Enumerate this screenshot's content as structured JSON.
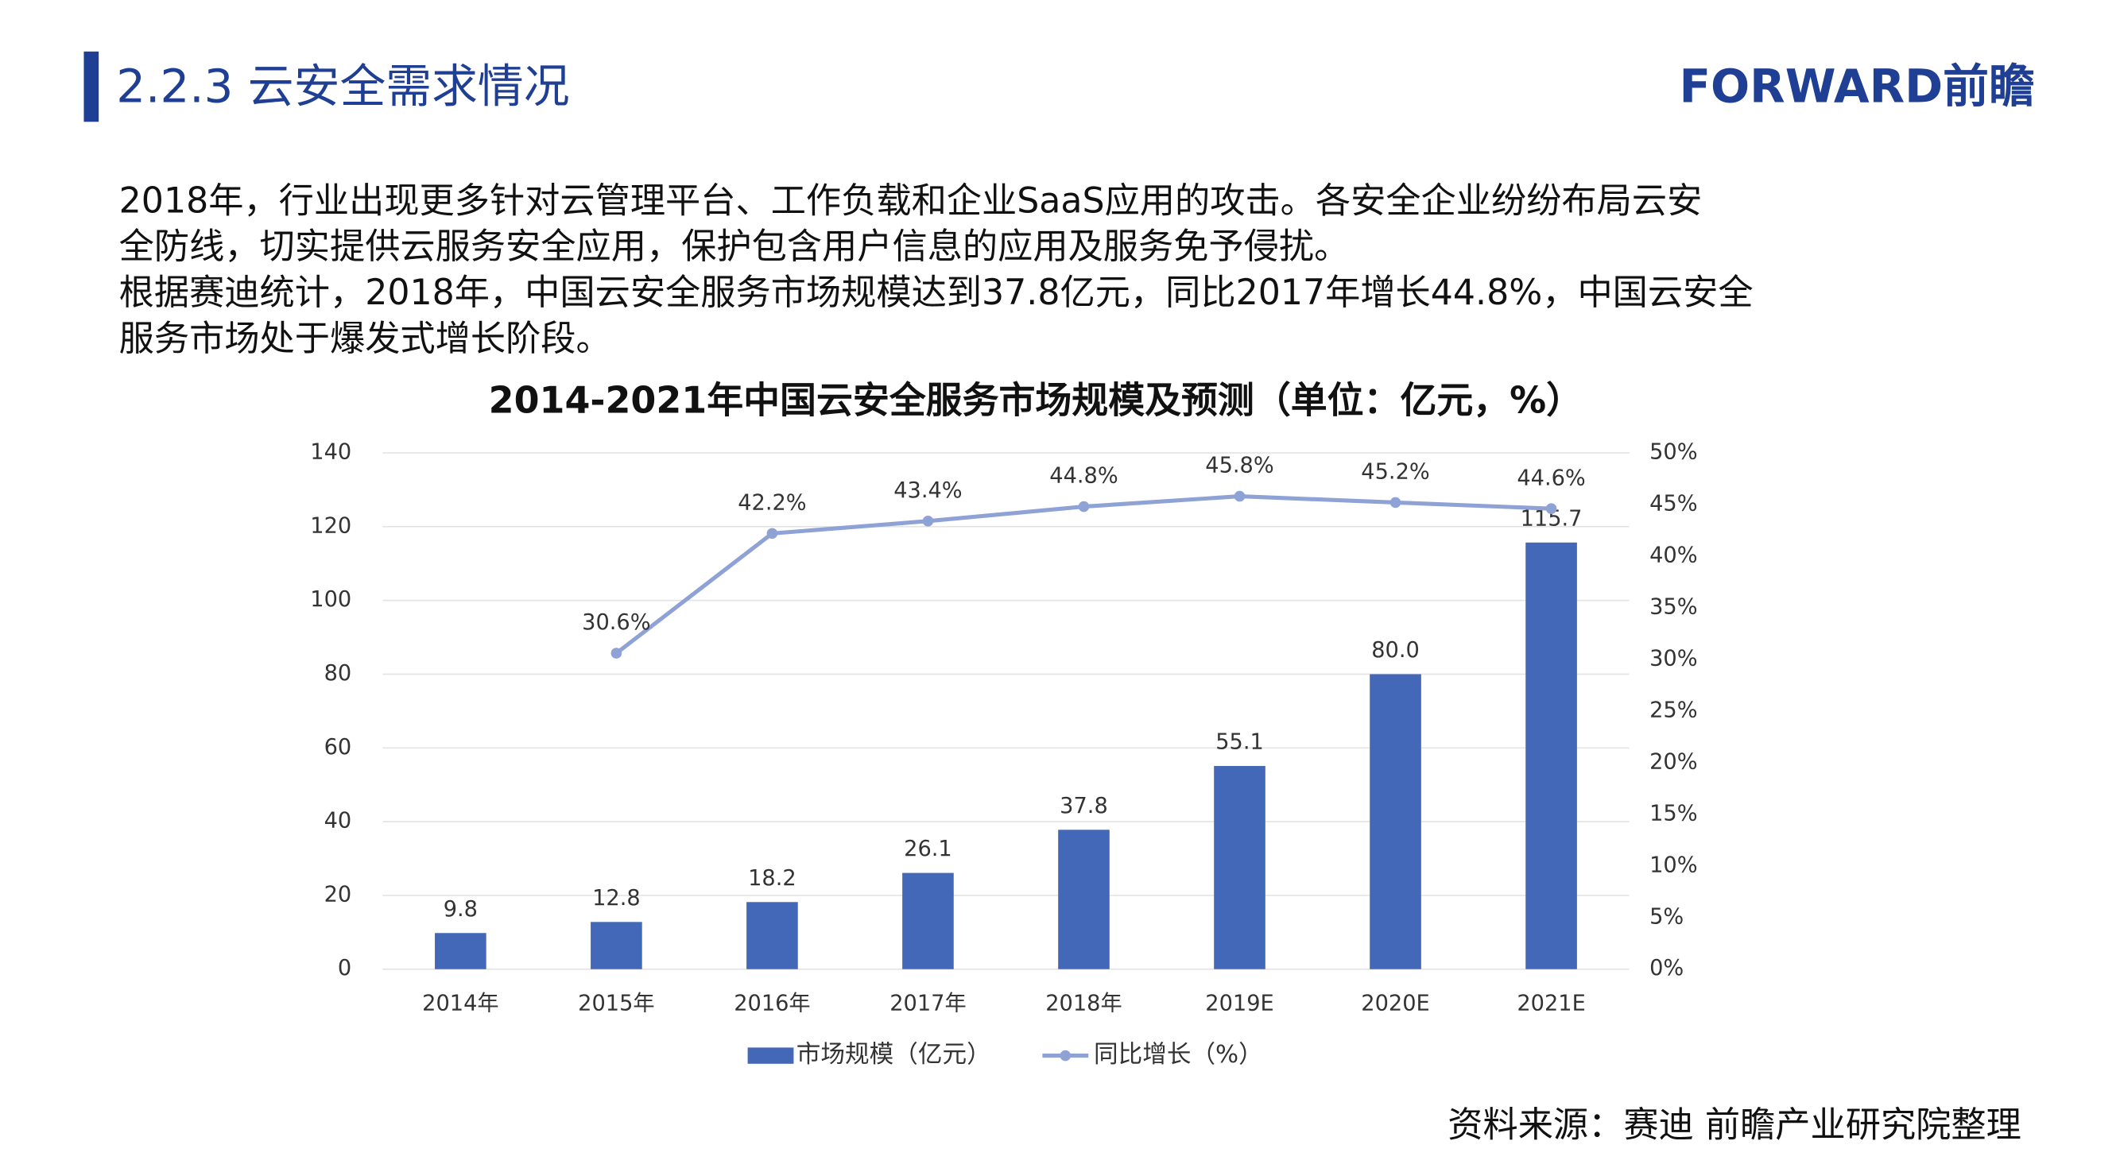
{
  "header": {
    "title": "2.2.3 云安全需求情况",
    "logo": "FORWARD前瞻"
  },
  "paragraphs": [
    [
      "2018年，行业出现更多针对云管理平台、工作负载和企业SaaS应用的攻击。各安全企业纷纷布局云安",
      "全防线，切实提供云服务安全应用，保护包含用户信息的应用及服务免予侵扰。"
    ],
    [
      "根据赛迪统计，2018年，中国云安全服务市场规模达到37.8亿元，同比2017年增长44.8%，中国云安全",
      "服务市场处于爆发式增长阶段。"
    ]
  ],
  "chart_data": {
    "type": "bar-line",
    "title": "2014-2021年中国云安全服务市场规模及预测（单位：亿元，%）",
    "categories": [
      "2014年",
      "2015年",
      "2016年",
      "2017年",
      "2018年",
      "2019E",
      "2020E",
      "2021E"
    ],
    "series": [
      {
        "name": "市场规模（亿元）",
        "color": "#4468b8",
        "values": [
          9.8,
          12.8,
          18.2,
          26.1,
          37.8,
          55.1,
          80.0,
          115.7
        ],
        "value_labels": [
          "9.8",
          "12.8",
          "18.2",
          "26.1",
          "37.8",
          "55.1",
          "80.0",
          "115.7"
        ]
      },
      {
        "name": "同比增长（%）",
        "color": "#8fa2d6",
        "axis": "y2",
        "values": [
          null,
          30.6,
          42.2,
          43.4,
          44.8,
          45.8,
          45.2,
          44.6
        ],
        "value_labels": [
          null,
          "30.6%",
          "42.2%",
          "43.4%",
          "44.8%",
          "45.8%",
          "45.2%",
          "44.6%"
        ]
      }
    ],
    "ylim": [
      0,
      140
    ],
    "yticks": [
      0,
      20,
      40,
      60,
      80,
      100,
      120,
      140
    ],
    "y2lim": [
      0,
      50
    ],
    "y2ticks": [
      {
        "value": 0,
        "label": "0%"
      },
      {
        "value": 5,
        "label": "5%"
      },
      {
        "value": 10,
        "label": "10%"
      },
      {
        "value": 15,
        "label": "15%"
      },
      {
        "value": 20,
        "label": "20%"
      },
      {
        "value": 25,
        "label": "25%"
      },
      {
        "value": 30,
        "label": "30%"
      },
      {
        "value": 35,
        "label": "35%"
      },
      {
        "value": 40,
        "label": "40%"
      },
      {
        "value": 45,
        "label": "45%"
      },
      {
        "value": 50,
        "label": "50%"
      }
    ],
    "grid": true
  },
  "source": "资料来源：赛迪 前瞻产业研究院整理"
}
